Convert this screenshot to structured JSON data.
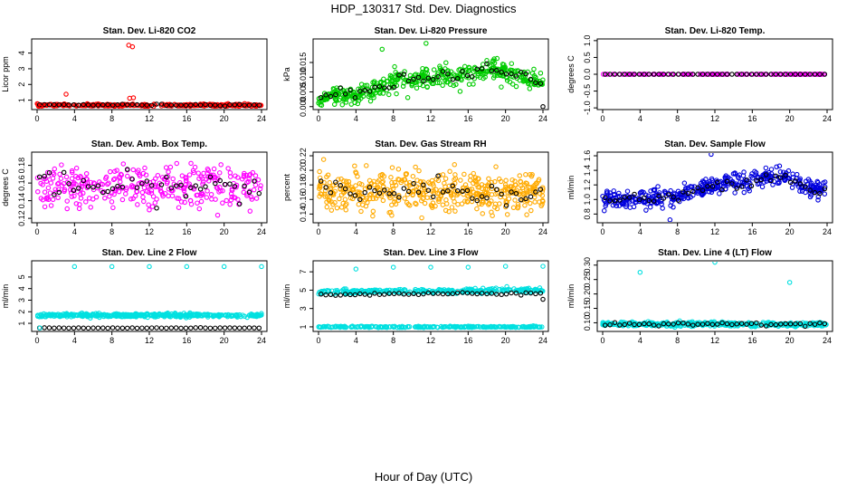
{
  "title": "HDP_130317  Std. Dev. Diagnostics",
  "xlabel": "Hour of Day (UTC)",
  "chart_data": [
    {
      "type": "scatter",
      "title": "Stan. Dev. Li-820 CO2",
      "ylabel": "Licor ppm",
      "xlim": [
        0,
        24
      ],
      "ylim": [
        0.4,
        4.9
      ],
      "xticks": [
        0,
        4,
        8,
        12,
        16,
        20,
        24
      ],
      "yticks": [
        1,
        2,
        3,
        4
      ],
      "ytick_labels": [
        "1",
        "2",
        "3",
        "4"
      ],
      "series": [
        {
          "name": "all",
          "color": "#ff0000",
          "base": 0.68,
          "spread": 0.06,
          "count": 300,
          "trend": [
            [
              0,
              0
            ],
            [
              24,
              0
            ]
          ]
        },
        {
          "name": "hourly",
          "color": "#000000",
          "base": 0.7,
          "spread": 0.04,
          "count": 46,
          "trend": [
            [
              0,
              0
            ],
            [
              24,
              0
            ]
          ]
        }
      ],
      "outliers": [
        {
          "x": 9.8,
          "y": 4.5,
          "color": "#ff0000"
        },
        {
          "x": 10.2,
          "y": 4.4,
          "color": "#ff0000"
        },
        {
          "x": 3.1,
          "y": 1.38,
          "color": "#ff0000"
        },
        {
          "x": 9.9,
          "y": 1.12,
          "color": "#ff0000"
        },
        {
          "x": 10.3,
          "y": 1.15,
          "color": "#ff0000"
        },
        {
          "x": 0.4,
          "y": 0.55,
          "color": "#ff0000"
        }
      ]
    },
    {
      "type": "scatter",
      "title": "Stan. Dev. Li-820 Pressure",
      "ylabel": "kPa",
      "xlim": [
        0,
        24
      ],
      "ylim": [
        -0.001,
        0.023
      ],
      "xticks": [
        0,
        4,
        8,
        12,
        16,
        20,
        24
      ],
      "yticks": [
        0,
        0.005,
        0.01,
        0.015
      ],
      "ytick_labels": [
        "0.000",
        "0.005",
        "0.010",
        "0.015"
      ],
      "series": [
        {
          "name": "all",
          "color": "#00cc00",
          "base": 0.003,
          "spread": 0.0028,
          "count": 420,
          "trend": [
            [
              0,
              0
            ],
            [
              4,
              0.001
            ],
            [
              8,
              0.005
            ],
            [
              12,
              0.007
            ],
            [
              16,
              0.008
            ],
            [
              18,
              0.01
            ],
            [
              20,
              0.008
            ],
            [
              24,
              0.005
            ]
          ]
        },
        {
          "name": "hourly",
          "color": "#000000",
          "base": 0.003,
          "spread": 0.002,
          "count": 46,
          "trend": [
            [
              0,
              0
            ],
            [
              4,
              0.001
            ],
            [
              8,
              0.005
            ],
            [
              12,
              0.007
            ],
            [
              16,
              0.008
            ],
            [
              18,
              0.01
            ],
            [
              20,
              0.008
            ],
            [
              24,
              0.005
            ]
          ]
        }
      ],
      "outliers": [
        {
          "x": 11.5,
          "y": 0.0215,
          "color": "#00cc00"
        },
        {
          "x": 6.8,
          "y": 0.0195,
          "color": "#00cc00"
        },
        {
          "x": 24,
          "y": 0.0,
          "color": "#000000"
        }
      ]
    },
    {
      "type": "scatter",
      "title": "Stan. Dev. Li-820 Temp.",
      "ylabel": "degrees C",
      "xlim": [
        0,
        24
      ],
      "ylim": [
        -1.05,
        1.05
      ],
      "xticks": [
        0,
        4,
        8,
        12,
        16,
        20,
        24
      ],
      "yticks": [
        -1,
        -0.5,
        0,
        0.5,
        1
      ],
      "ytick_labels": [
        "-1.0",
        "-0.5",
        "0.0",
        "0.5",
        "1.0"
      ],
      "series": [
        {
          "name": "all",
          "color": "#ff00ff",
          "base": 0,
          "spread": 0,
          "count": 150,
          "trend": [
            [
              0,
              0
            ],
            [
              24,
              0
            ]
          ]
        },
        {
          "name": "hourly",
          "color": "#000000",
          "base": 0,
          "spread": 0,
          "count": 46,
          "trend": [
            [
              0,
              0
            ],
            [
              24,
              0
            ]
          ]
        }
      ],
      "outliers": []
    },
    {
      "type": "scatter",
      "title": "Stan. Dev. Amb. Box Temp.",
      "ylabel": "degrees C",
      "xlim": [
        0,
        24
      ],
      "ylim": [
        0.115,
        0.195
      ],
      "xticks": [
        0,
        4,
        8,
        12,
        16,
        20,
        24
      ],
      "yticks": [
        0.12,
        0.14,
        0.16,
        0.18
      ],
      "ytick_labels": [
        "0.12",
        "0.14",
        "0.16",
        "0.18"
      ],
      "series": [
        {
          "name": "all",
          "color": "#ff00ff",
          "base": 0.155,
          "spread": 0.02,
          "count": 330,
          "trend": [
            [
              0,
              0
            ],
            [
              24,
              0
            ]
          ]
        },
        {
          "name": "hourly",
          "color": "#000000",
          "base": 0.155,
          "spread": 0.013,
          "count": 46,
          "trend": [
            [
              0,
              0
            ],
            [
              24,
              0
            ]
          ]
        }
      ],
      "outliers": []
    },
    {
      "type": "scatter",
      "title": "Stan. Dev. Gas Stream RH",
      "ylabel": "percent",
      "xlim": [
        0,
        24
      ],
      "ylim": [
        0.128,
        0.225
      ],
      "xticks": [
        0,
        4,
        8,
        12,
        16,
        20,
        24
      ],
      "yticks": [
        0.14,
        0.16,
        0.18,
        0.2,
        0.22
      ],
      "ytick_labels": [
        "0.14",
        "0.16",
        "0.18",
        "0.20",
        "0.22"
      ],
      "series": [
        {
          "name": "all",
          "color": "#ffaa00",
          "base": 0.172,
          "spread": 0.022,
          "count": 460,
          "trend": [
            [
              0,
              0
            ],
            [
              24,
              0
            ]
          ]
        },
        {
          "name": "hourly",
          "color": "#000000",
          "base": 0.172,
          "spread": 0.015,
          "count": 46,
          "trend": [
            [
              0,
              0
            ],
            [
              24,
              0
            ]
          ]
        }
      ],
      "outliers": []
    },
    {
      "type": "scatter",
      "title": "Stan. Dev. Sample Flow",
      "ylabel": "ml/min",
      "xlim": [
        0,
        24
      ],
      "ylim": [
        0.68,
        1.65
      ],
      "xticks": [
        0,
        4,
        8,
        12,
        16,
        20,
        24
      ],
      "yticks": [
        0.8,
        1.0,
        1.2,
        1.4,
        1.6
      ],
      "ytick_labels": [
        "0.8",
        "1.0",
        "1.2",
        "1.4",
        "1.6"
      ],
      "series": [
        {
          "name": "all",
          "color": "#0000dd",
          "base": 1.0,
          "spread": 0.1,
          "count": 420,
          "trend": [
            [
              0,
              0
            ],
            [
              8,
              0.02
            ],
            [
              12,
              0.22
            ],
            [
              16,
              0.25
            ],
            [
              19,
              0.35
            ],
            [
              22,
              0.15
            ],
            [
              24,
              0.1
            ]
          ]
        },
        {
          "name": "hourly",
          "color": "#000000",
          "base": 1.0,
          "spread": 0.06,
          "count": 46,
          "trend": [
            [
              0,
              0
            ],
            [
              8,
              0.02
            ],
            [
              12,
              0.22
            ],
            [
              16,
              0.25
            ],
            [
              19,
              0.35
            ],
            [
              22,
              0.15
            ],
            [
              24,
              0.1
            ]
          ]
        }
      ],
      "outliers": [
        {
          "x": 7.2,
          "y": 0.72,
          "color": "#0000dd"
        },
        {
          "x": 11.6,
          "y": 1.62,
          "color": "#0000dd"
        }
      ]
    },
    {
      "type": "scatter",
      "title": "Stan. Dev. Line 2 Flow",
      "ylabel": "ml/min",
      "xlim": [
        0,
        24
      ],
      "ylim": [
        0.3,
        6.4
      ],
      "xticks": [
        0,
        4,
        8,
        12,
        16,
        20,
        24
      ],
      "yticks": [
        1,
        2,
        3,
        4,
        5
      ],
      "ytick_labels": [
        "1",
        "2",
        "3",
        "4",
        "5"
      ],
      "series": [
        {
          "name": "all",
          "color": "#00e0e0",
          "base": 1.7,
          "spread": 0.12,
          "count": 400,
          "trend": [
            [
              0,
              0
            ],
            [
              24,
              0
            ]
          ]
        },
        {
          "name": "hourly",
          "color": "#000000",
          "base": 0.6,
          "spread": 0.02,
          "count": 46,
          "trend": [
            [
              0,
              0
            ],
            [
              24,
              0
            ]
          ]
        }
      ],
      "outliers": [
        {
          "x": 4,
          "y": 5.9,
          "color": "#00e0e0"
        },
        {
          "x": 8,
          "y": 5.9,
          "color": "#00e0e0"
        },
        {
          "x": 12,
          "y": 5.9,
          "color": "#00e0e0"
        },
        {
          "x": 16,
          "y": 5.9,
          "color": "#00e0e0"
        },
        {
          "x": 20,
          "y": 5.9,
          "color": "#00e0e0"
        },
        {
          "x": 24,
          "y": 5.9,
          "color": "#00e0e0"
        },
        {
          "x": 0.3,
          "y": 0.6,
          "color": "#00e0e0"
        }
      ]
    },
    {
      "type": "scatter",
      "title": "Stan. Dev. Line 3 Flow",
      "ylabel": "ml/min",
      "xlim": [
        0,
        24
      ],
      "ylim": [
        0.5,
        8.2
      ],
      "xticks": [
        0,
        4,
        8,
        12,
        16,
        20,
        24
      ],
      "yticks": [
        1,
        3,
        5,
        7
      ],
      "ytick_labels": [
        "1",
        "3",
        "5",
        "7"
      ],
      "series": [
        {
          "name": "all",
          "color": "#00e0e0",
          "base": 4.8,
          "spread": 0.18,
          "count": 280,
          "trend": [
            [
              0,
              0
            ],
            [
              24,
              0.2
            ]
          ]
        },
        {
          "name": "all-low",
          "color": "#00e0e0",
          "base": 1.0,
          "spread": 0.06,
          "count": 260,
          "trend": [
            [
              0,
              0
            ],
            [
              24,
              0
            ]
          ]
        },
        {
          "name": "hourly",
          "color": "#000000",
          "base": 4.5,
          "spread": 0.12,
          "count": 46,
          "trend": [
            [
              0,
              0
            ],
            [
              24,
              0.2
            ]
          ]
        }
      ],
      "outliers": [
        {
          "x": 4,
          "y": 7.3,
          "color": "#00e0e0"
        },
        {
          "x": 8,
          "y": 7.5,
          "color": "#00e0e0"
        },
        {
          "x": 12,
          "y": 7.5,
          "color": "#00e0e0"
        },
        {
          "x": 16,
          "y": 7.5,
          "color": "#00e0e0"
        },
        {
          "x": 20,
          "y": 7.6,
          "color": "#00e0e0"
        },
        {
          "x": 24,
          "y": 7.6,
          "color": "#00e0e0"
        },
        {
          "x": 24,
          "y": 4.0,
          "color": "#000000"
        }
      ]
    },
    {
      "type": "scatter",
      "title": "Stan. Dev. Line 4 (LT) Flow",
      "ylabel": "ml/min",
      "xlim": [
        0,
        24
      ],
      "ylim": [
        0.07,
        0.315
      ],
      "xticks": [
        0,
        4,
        8,
        12,
        16,
        20,
        24
      ],
      "yticks": [
        0.1,
        0.15,
        0.2,
        0.25,
        0.3
      ],
      "ytick_labels": [
        "0.10",
        "0.15",
        "0.20",
        "0.25",
        "0.30"
      ],
      "series": [
        {
          "name": "all",
          "color": "#00e0e0",
          "base": 0.095,
          "spread": 0.006,
          "count": 420,
          "trend": [
            [
              0,
              0
            ],
            [
              24,
              0
            ]
          ]
        },
        {
          "name": "hourly",
          "color": "#000000",
          "base": 0.096,
          "spread": 0.005,
          "count": 46,
          "trend": [
            [
              0,
              0
            ],
            [
              24,
              0
            ]
          ]
        }
      ],
      "outliers": [
        {
          "x": 4,
          "y": 0.275,
          "color": "#00e0e0"
        },
        {
          "x": 12,
          "y": 0.31,
          "color": "#00e0e0"
        },
        {
          "x": 20,
          "y": 0.24,
          "color": "#00e0e0"
        }
      ]
    }
  ]
}
